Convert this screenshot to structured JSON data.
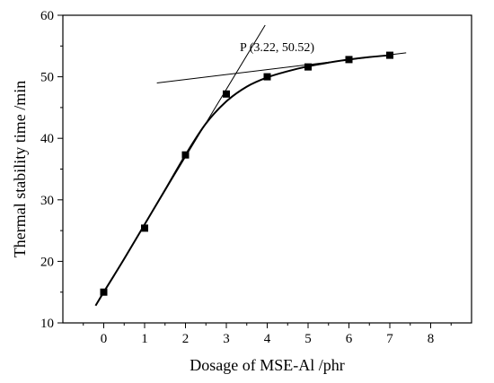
{
  "chart_data": {
    "type": "line",
    "title": "",
    "xlabel": "Dosage of MSE-Al /phr",
    "ylabel": "Thermal stability time /min",
    "xlim": [
      -1,
      9
    ],
    "ylim": [
      10,
      60
    ],
    "x_ticks": [
      "0",
      "1",
      "2",
      "3",
      "4",
      "5",
      "6",
      "7",
      "8"
    ],
    "y_ticks": [
      "10",
      "20",
      "30",
      "40",
      "50",
      "60"
    ],
    "grid": false,
    "series": [
      {
        "marker": "square",
        "x": [
          0,
          1,
          2,
          3,
          4,
          5,
          6,
          7
        ],
        "y": [
          15.0,
          25.4,
          37.3,
          47.2,
          50.0,
          51.6,
          52.8,
          53.5
        ]
      }
    ],
    "fit_curve": {
      "x": [
        -0.2,
        0,
        0.5,
        1,
        1.5,
        2,
        2.5,
        3,
        3.5,
        4,
        4.5,
        5,
        5.5,
        6,
        6.5,
        7
      ],
      "y": [
        12.8,
        15.0,
        20.4,
        26.0,
        31.6,
        37.3,
        42.4,
        46.0,
        48.4,
        49.9,
        50.9,
        51.7,
        52.3,
        52.8,
        53.2,
        53.5
      ]
    },
    "tangent_lines": [
      {
        "x": [
          0,
          3.95
        ],
        "y": [
          15.0,
          58.4
        ]
      },
      {
        "x": [
          1.3,
          7.4
        ],
        "y": [
          49.0,
          53.9
        ]
      }
    ],
    "annotation": {
      "text": "P (3.22, 50.52)",
      "x": 3.22,
      "y": 50.52
    },
    "colors": {
      "line": "#000000",
      "marker": "#000000"
    }
  }
}
